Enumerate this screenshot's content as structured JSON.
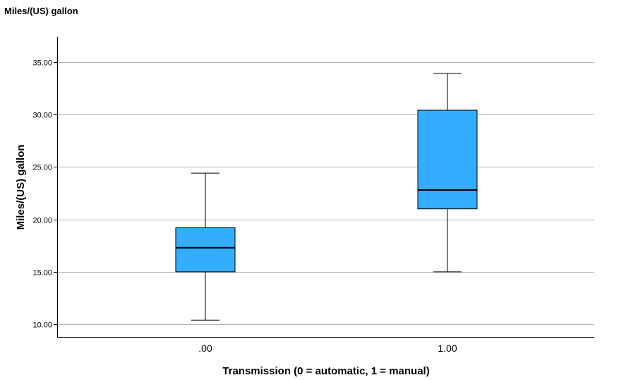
{
  "chart_data": {
    "type": "boxplot",
    "title": "Miles/(US) gallon",
    "xlabel": "Transmission (0 = automatic, 1 = manual)",
    "ylabel": "Miles/(US) gallon",
    "ylim": [
      8.8,
      37.4
    ],
    "yticks": [
      10,
      15,
      20,
      25,
      30,
      35
    ],
    "ytick_labels": [
      "10.00",
      "15.00",
      "20.00",
      "25.00",
      "30.00",
      "35.00"
    ],
    "grid": true,
    "categories": [
      ".00",
      "1.00"
    ],
    "boxes": [
      {
        "category": ".00",
        "min": 10.4,
        "q1": 15.0,
        "median": 17.3,
        "q3": 19.2,
        "max": 24.4
      },
      {
        "category": "1.00",
        "min": 15.0,
        "q1": 21.0,
        "median": 22.8,
        "q3": 30.4,
        "max": 33.9
      }
    ],
    "colors": {
      "box_fill": "#33adff",
      "grid": "#b5b5b5",
      "axis": "#000000"
    }
  }
}
